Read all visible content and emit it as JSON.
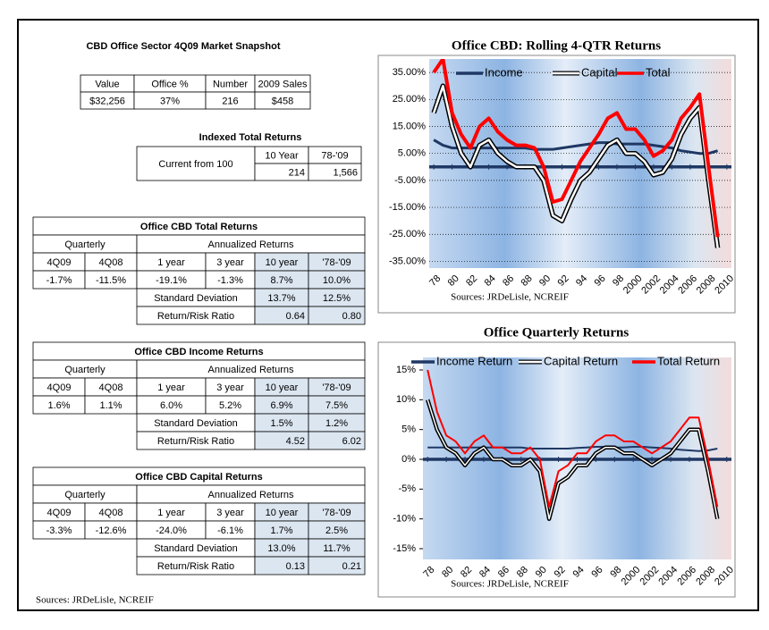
{
  "snapshot": {
    "title": "CBD Office Sector 4Q09 Market Snapshot",
    "headers": [
      "Value",
      "Office %",
      "Number",
      "2009 Sales"
    ],
    "values": [
      "$32,256",
      "37%",
      "216",
      "$458"
    ]
  },
  "indexed": {
    "title": "Indexed Total Returns",
    "row_label": "Current from 100",
    "headers": [
      "10 Year",
      "78-'09"
    ],
    "values": [
      "214",
      "1,566"
    ]
  },
  "total_returns": {
    "title": "Office CBD Total Returns",
    "quarterly_label": "Quarterly",
    "annualized_label": "Annualized Returns",
    "headers": [
      "4Q09",
      "4Q08",
      "1 year",
      "3 year",
      "10 year",
      "'78-'09"
    ],
    "values": [
      "-1.7%",
      "-11.5%",
      "-19.1%",
      "-1.3%",
      "8.7%",
      "10.0%"
    ],
    "std_dev_label": "Standard Deviation",
    "std_dev": [
      "13.7%",
      "12.5%"
    ],
    "ratio_label": "Return/Risk Ratio",
    "ratio": [
      "0.64",
      "0.80"
    ]
  },
  "income_returns": {
    "title": "Office CBD Income Returns",
    "quarterly_label": "Quarterly",
    "annualized_label": "Annualized Returns",
    "headers": [
      "4Q09",
      "4Q08",
      "1 year",
      "3 year",
      "10 year",
      "'78-'09"
    ],
    "values": [
      "1.6%",
      "1.1%",
      "6.0%",
      "5.2%",
      "6.9%",
      "7.5%"
    ],
    "std_dev_label": "Standard Deviation",
    "std_dev": [
      "1.5%",
      "1.2%"
    ],
    "ratio_label": "Return/Risk Ratio",
    "ratio": [
      "4.52",
      "6.02"
    ]
  },
  "capital_returns": {
    "title": "Office CBD Capital Returns",
    "quarterly_label": "Quarterly",
    "annualized_label": "Annualized Returns",
    "headers": [
      "4Q09",
      "4Q08",
      "1 year",
      "3 year",
      "10 year",
      "'78-'09"
    ],
    "values": [
      "-3.3%",
      "-12.6%",
      "-24.0%",
      "-6.1%",
      "1.7%",
      "2.5%"
    ],
    "std_dev_label": "Standard Deviation",
    "std_dev": [
      "13.0%",
      "11.7%"
    ],
    "ratio_label": "Return/Risk Ratio",
    "ratio": [
      "0.13",
      "0.21"
    ]
  },
  "footer": "Sources: JRDeLisle, NCREIF",
  "chart_data": [
    {
      "type": "line",
      "title": "Office CBD:  Rolling 4-QTR Returns",
      "source": "Sources: JRDeLisle, NCREIF",
      "grid": true,
      "x": [
        1978,
        1979,
        1980,
        1981,
        1982,
        1983,
        1984,
        1985,
        1986,
        1987,
        1988,
        1989,
        1990,
        1991,
        1992,
        1993,
        1994,
        1995,
        1996,
        1997,
        1998,
        1999,
        2000,
        2001,
        2002,
        2003,
        2004,
        2005,
        2006,
        2007,
        2008,
        2009
      ],
      "xlim": [
        1977.5,
        2010.5
      ],
      "xticks": [
        {
          "value": 1978,
          "label": "78"
        },
        {
          "value": 1980,
          "label": "80"
        },
        {
          "value": 1982,
          "label": "82"
        },
        {
          "value": 1984,
          "label": "84"
        },
        {
          "value": 1986,
          "label": "86"
        },
        {
          "value": 1988,
          "label": "88"
        },
        {
          "value": 1990,
          "label": "90"
        },
        {
          "value": 1992,
          "label": "92"
        },
        {
          "value": 1994,
          "label": "94"
        },
        {
          "value": 1996,
          "label": "96"
        },
        {
          "value": 1998,
          "label": "98"
        },
        2000,
        2002,
        2004,
        2006,
        2008,
        2010
      ],
      "ylim": [
        -37.5,
        40
      ],
      "yticks": [
        {
          "value": -35,
          "label": "-35.00%"
        },
        {
          "value": -25,
          "label": "-25.00%"
        },
        {
          "value": -15,
          "label": "-15.00%"
        },
        {
          "value": -5,
          "label": "-5.00%"
        },
        {
          "value": 5,
          "label": "5.00%"
        },
        {
          "value": 15,
          "label": "15.00%"
        },
        {
          "value": 25,
          "label": "25.00%"
        },
        {
          "value": 35,
          "label": "35.00%"
        }
      ],
      "series": [
        {
          "name": "Income",
          "color": "#1f3864",
          "values": [
            10,
            8,
            7,
            7,
            7,
            7,
            7,
            7,
            7,
            7,
            7,
            6.5,
            6.5,
            6.5,
            7,
            7.5,
            8,
            8.5,
            9,
            9,
            8.5,
            8.5,
            8.5,
            8.5,
            8,
            7.5,
            7,
            6,
            5.5,
            5,
            5,
            6
          ]
        },
        {
          "name": "Capital",
          "color": "#ffffff",
          "outline": "#000000",
          "values": [
            20,
            30,
            15,
            5,
            0,
            8,
            10,
            5,
            2,
            0,
            0,
            0,
            -5,
            -18,
            -20,
            -12,
            -5,
            -2,
            3,
            8,
            10,
            5,
            5,
            2,
            -3,
            -2,
            3,
            12,
            18,
            22,
            -5,
            -30
          ]
        },
        {
          "name": "Total",
          "color": "#ff0000",
          "values": [
            35,
            40,
            20,
            12,
            7,
            15,
            18,
            13,
            10,
            8,
            8,
            7,
            0,
            -13,
            -12,
            -5,
            2,
            7,
            12,
            18,
            20,
            14,
            14,
            10,
            4,
            6,
            10,
            18,
            22,
            27,
            0,
            -26
          ]
        }
      ]
    },
    {
      "type": "line",
      "title": "Office Quarterly Returns",
      "source": "Sources: JRDeLisle, NCREIF",
      "grid": false,
      "x": [
        1978,
        1979,
        1980,
        1981,
        1982,
        1983,
        1984,
        1985,
        1986,
        1987,
        1988,
        1989,
        1990,
        1991,
        1992,
        1993,
        1994,
        1995,
        1996,
        1997,
        1998,
        1999,
        2000,
        2001,
        2002,
        2003,
        2004,
        2005,
        2006,
        2007,
        2008,
        2009
      ],
      "xlim": [
        1977.5,
        2010.5
      ],
      "xticks": [
        {
          "value": 1978,
          "label": "78"
        },
        {
          "value": 1980,
          "label": "80"
        },
        {
          "value": 1982,
          "label": "82"
        },
        {
          "value": 1984,
          "label": "84"
        },
        {
          "value": 1986,
          "label": "86"
        },
        {
          "value": 1988,
          "label": "88"
        },
        {
          "value": 1990,
          "label": "90"
        },
        {
          "value": 1992,
          "label": "92"
        },
        {
          "value": 1994,
          "label": "94"
        },
        {
          "value": 1996,
          "label": "96"
        },
        {
          "value": 1998,
          "label": "98"
        },
        2000,
        2002,
        2004,
        2006,
        2008,
        2010
      ],
      "ylim": [
        -15,
        15
      ],
      "yticks": [
        {
          "value": -15,
          "label": "-15%"
        },
        {
          "value": -10,
          "label": "-10%"
        },
        {
          "value": -5,
          "label": "-5%"
        },
        {
          "value": 0,
          "label": "0%"
        },
        {
          "value": 5,
          "label": "5%"
        },
        {
          "value": 10,
          "label": "10%"
        },
        {
          "value": 15,
          "label": "15%"
        }
      ],
      "series": [
        {
          "name": "Income Return",
          "color": "#1f3864",
          "values": [
            2,
            2,
            2,
            2,
            2,
            2,
            2,
            2,
            2,
            2,
            2,
            1.8,
            1.8,
            1.8,
            1.8,
            1.8,
            1.9,
            2,
            2.1,
            2.1,
            2,
            2,
            2.1,
            2.1,
            2,
            1.9,
            1.8,
            1.6,
            1.5,
            1.4,
            1.5,
            1.8
          ]
        },
        {
          "name": "Capital Return",
          "color": "#ffffff",
          "outline": "#000000",
          "values": [
            10,
            5,
            2,
            1,
            -1,
            1,
            2,
            0,
            0,
            -1,
            -1,
            0,
            -2,
            -10,
            -4,
            -3,
            -1,
            -1,
            1,
            2,
            2,
            1,
            1,
            0,
            -1,
            0,
            1,
            3,
            5,
            5,
            -2,
            -10
          ]
        },
        {
          "name": "Total Return",
          "color": "#ff0000",
          "values": [
            15,
            8,
            4,
            3,
            1,
            3,
            4,
            2,
            2,
            1,
            1,
            2,
            0,
            -8,
            -2,
            -1,
            1,
            1,
            3,
            4,
            4,
            3,
            3,
            2,
            1,
            2,
            3,
            5,
            7,
            7,
            0,
            -8
          ]
        }
      ]
    }
  ]
}
